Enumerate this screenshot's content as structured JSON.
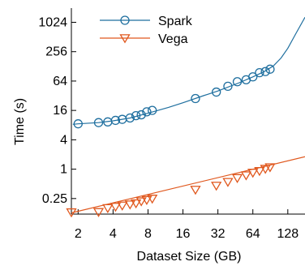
{
  "chart_data": {
    "type": "line",
    "xlabel": "Dataset Size (GB)",
    "ylabel": "Time (s)",
    "x_scale": "log2",
    "y_scale": "log2",
    "xlim": [
      1.75,
      180
    ],
    "ylim": [
      0.12,
      2000
    ],
    "x_ticks": [
      2,
      4,
      8,
      16,
      32,
      64,
      128
    ],
    "x_tick_labels": [
      "2",
      "4",
      "8",
      "16",
      "32",
      "64",
      "128"
    ],
    "y_ticks": [
      0.25,
      1,
      4,
      16,
      64,
      256,
      1024
    ],
    "y_tick_labels": [
      "0.25",
      "1",
      "4",
      "16",
      "64",
      "256",
      "1024"
    ],
    "legend_position": "top-left",
    "series": [
      {
        "name": "Spark",
        "color": "#1f6f9f",
        "marker": "circle",
        "points": [
          [
            2,
            8.5
          ],
          [
            3,
            9
          ],
          [
            3.6,
            9.3
          ],
          [
            4.2,
            10
          ],
          [
            4.8,
            10.5
          ],
          [
            5.6,
            11.2
          ],
          [
            6.3,
            12.5
          ],
          [
            7,
            13
          ],
          [
            7.8,
            15
          ],
          [
            8.7,
            16
          ],
          [
            20.5,
            28
          ],
          [
            31,
            38
          ],
          [
            39,
            50
          ],
          [
            47,
            62
          ],
          [
            56,
            68
          ],
          [
            64,
            78
          ],
          [
            73,
            95
          ],
          [
            82,
            100
          ],
          [
            90,
            112
          ]
        ],
        "curve": [
          [
            1.8,
            8.3
          ],
          [
            2,
            8.5
          ],
          [
            3,
            9
          ],
          [
            4,
            9.8
          ],
          [
            5.6,
            11.2
          ],
          [
            8,
            14
          ],
          [
            12,
            18.5
          ],
          [
            16,
            23
          ],
          [
            24,
            32
          ],
          [
            32,
            40
          ],
          [
            48,
            58
          ],
          [
            64,
            78
          ],
          [
            80,
            100
          ],
          [
            96,
            130
          ],
          [
            112,
            190
          ],
          [
            128,
            300
          ],
          [
            150,
            600
          ],
          [
            180,
            1300
          ]
        ]
      },
      {
        "name": "Vega",
        "color": "#e0581e",
        "marker": "triangle-down",
        "points": [
          [
            1.75,
            0.131
          ],
          [
            3,
            0.133
          ],
          [
            3.6,
            0.16
          ],
          [
            4.2,
            0.17
          ],
          [
            4.8,
            0.18
          ],
          [
            5.6,
            0.19
          ],
          [
            6.3,
            0.2
          ],
          [
            7,
            0.22
          ],
          [
            7.8,
            0.235
          ],
          [
            8.7,
            0.25
          ],
          [
            20.5,
            0.38
          ],
          [
            31,
            0.46
          ],
          [
            39,
            0.55
          ],
          [
            47,
            0.66
          ],
          [
            56,
            0.75
          ],
          [
            64,
            0.85
          ],
          [
            73,
            0.92
          ],
          [
            82,
            1.02
          ],
          [
            90,
            1.1
          ]
        ],
        "curve": [
          [
            1.75,
            0.127
          ],
          [
            180,
            1.8
          ]
        ]
      }
    ]
  }
}
